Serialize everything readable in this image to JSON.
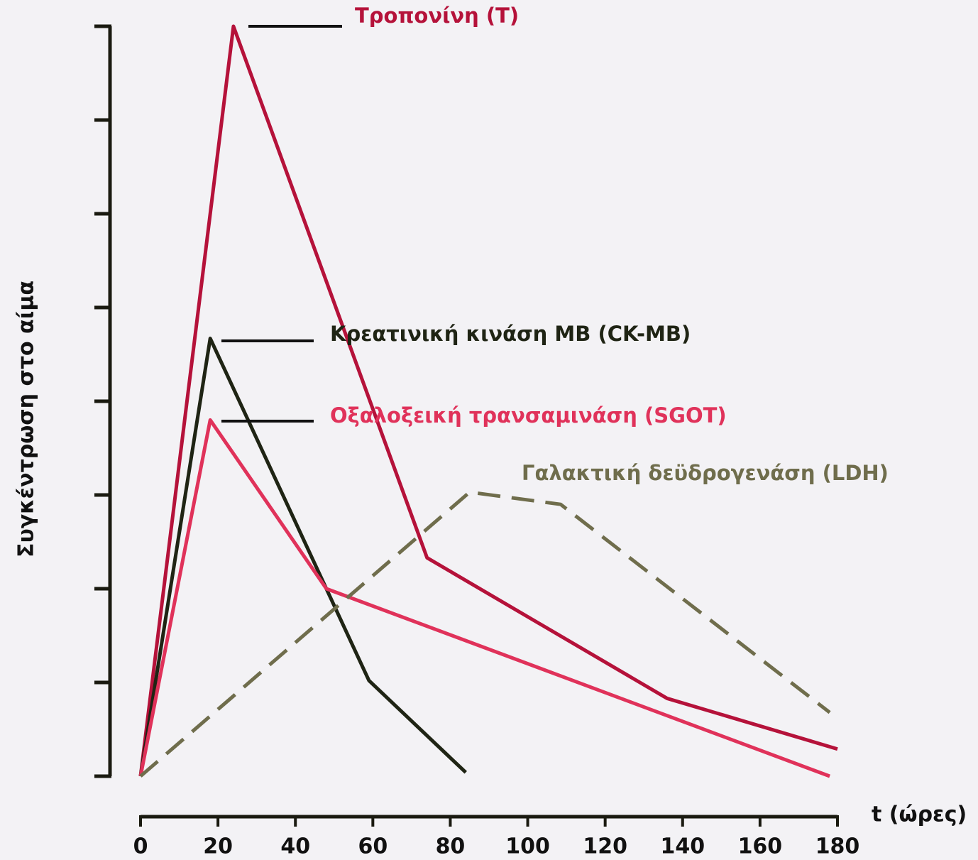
{
  "chart_data": {
    "type": "line",
    "y_label": "Συγκέντρωση στο αίμα",
    "x_label": "t (ώρες)",
    "xlim": [
      0,
      180
    ],
    "xticks": [
      0,
      20,
      40,
      60,
      80,
      100,
      120,
      140,
      160,
      180
    ],
    "ylim": [
      0,
      8
    ],
    "yticks": [
      0,
      1,
      2,
      3,
      4,
      5,
      6,
      7,
      8
    ],
    "series": [
      {
        "name": "Τροπονίνη (T)",
        "color": "#b5123a",
        "line_style": "solid",
        "x": [
          0,
          24,
          74,
          136,
          180
        ],
        "values": [
          0,
          8,
          2.33,
          0.83,
          0.29
        ]
      },
      {
        "name": "Κρεατινική κινάση MB (CK-MB)",
        "color": "#1f2414",
        "line_style": "solid",
        "x": [
          0,
          18,
          59,
          84
        ],
        "values": [
          0,
          4.67,
          1.02,
          0.04
        ]
      },
      {
        "name": "Οξαλοξεική τρανσαμινάση (SGOT)",
        "color": "#e0325a",
        "line_style": "solid",
        "x": [
          0,
          18,
          48,
          178
        ],
        "values": [
          0,
          3.8,
          2.0,
          0
        ]
      },
      {
        "name": "Γαλακτική δεϋδρογενάση (LDH)",
        "color": "#6f6d4c",
        "line_style": "dashed",
        "x": [
          0,
          85,
          108.5,
          178
        ],
        "values": [
          0,
          3.03,
          2.9,
          0.68
        ]
      }
    ]
  }
}
